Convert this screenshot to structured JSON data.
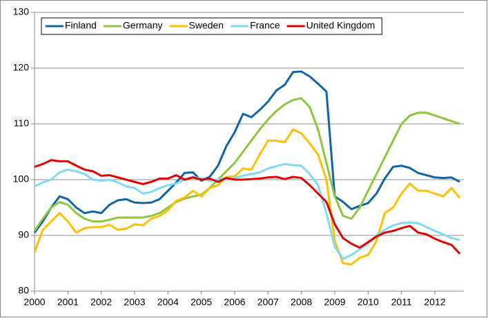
{
  "chart_data": {
    "type": "line",
    "x": [
      2000,
      2000.25,
      2000.5,
      2000.75,
      2001,
      2001.25,
      2001.5,
      2001.75,
      2002,
      2002.25,
      2002.5,
      2002.75,
      2003,
      2003.25,
      2003.5,
      2003.75,
      2004,
      2004.25,
      2004.5,
      2004.75,
      2005,
      2005.25,
      2005.5,
      2005.75,
      2006,
      2006.25,
      2006.5,
      2006.75,
      2007,
      2007.25,
      2007.5,
      2007.75,
      2008,
      2008.25,
      2008.5,
      2008.75,
      2009,
      2009.25,
      2009.5,
      2009.75,
      2010,
      2010.25,
      2010.5,
      2010.75,
      2011,
      2011.25,
      2011.5,
      2011.75,
      2012,
      2012.25,
      2012.5,
      2012.75
    ],
    "series": [
      {
        "name": "Finland",
        "color": "#0f64a8",
        "values": [
          90.5,
          92.5,
          95,
          97,
          96.5,
          95,
          94,
          94.3,
          94,
          95.5,
          96.3,
          96.5,
          95.9,
          95.8,
          95.9,
          96.5,
          98,
          99.5,
          101.2,
          101.3,
          99.8,
          100.5,
          102.5,
          106,
          108.5,
          111.8,
          111.2,
          112.5,
          114,
          116,
          117,
          119.3,
          119.4,
          118.5,
          117.2,
          115.8,
          97,
          96,
          94.7,
          95.3,
          95.8,
          97.5,
          100.2,
          102.3,
          102.5,
          102.1,
          101.2,
          100.8,
          100.4,
          100.3,
          100.4,
          99.6
        ]
      },
      {
        "name": "Germany",
        "color": "#8cc63f",
        "values": [
          90.8,
          93,
          95,
          96,
          95.5,
          94,
          93,
          92.5,
          92.5,
          92.8,
          93.2,
          93.2,
          93.2,
          93.2,
          93.5,
          94,
          95,
          96,
          96.6,
          97,
          97.3,
          98.5,
          100,
          101.5,
          103,
          105,
          107,
          109,
          110.8,
          112.3,
          113.5,
          114.3,
          114.6,
          113,
          109,
          103,
          97,
          93.5,
          93,
          95,
          98,
          101,
          104,
          107,
          110,
          111.5,
          112,
          112,
          111.5,
          111,
          110.5,
          110
        ]
      },
      {
        "name": "Sweden",
        "color": "#ffc000",
        "values": [
          87,
          91,
          92.5,
          94,
          92.5,
          90.5,
          91.3,
          91.5,
          91.5,
          91.9,
          91,
          91.2,
          92,
          91.8,
          93,
          93.5,
          94.5,
          96.2,
          96.8,
          98,
          97,
          98.5,
          99,
          100.5,
          100.6,
          102,
          101.8,
          104.5,
          107,
          107,
          106.7,
          109,
          108.3,
          106.5,
          104.5,
          100,
          89,
          85,
          84.8,
          86,
          86.5,
          89,
          94,
          95,
          97.5,
          99.3,
          98,
          98,
          97.5,
          97,
          98.5,
          96.7
        ]
      },
      {
        "name": "France",
        "color": "#7fd9f5",
        "values": [
          98.8,
          99.5,
          100,
          101.3,
          101.8,
          101.5,
          101,
          100,
          99.8,
          100,
          99.5,
          98.8,
          98.5,
          97.5,
          97.8,
          98.5,
          99,
          99.3,
          100,
          100.5,
          100.2,
          99.8,
          100,
          100.3,
          100.3,
          100.7,
          101,
          101.3,
          102,
          102.4,
          102.8,
          102.6,
          102.5,
          101,
          99,
          94,
          88,
          85.8,
          86.5,
          87.5,
          88.5,
          90,
          91,
          91.8,
          92.2,
          92.3,
          92.2,
          91.5,
          90.8,
          90.2,
          89.5,
          89.2
        ]
      },
      {
        "name": "United Kingdom",
        "color": "#e30000",
        "values": [
          102.3,
          102.8,
          103.5,
          103.3,
          103.3,
          102.5,
          101.8,
          101.5,
          100.7,
          100.8,
          100.4,
          100,
          99.6,
          99.2,
          99.6,
          100.2,
          100.2,
          100.8,
          100,
          100.4,
          100,
          100.2,
          99.6,
          100.3,
          100,
          100,
          100.1,
          100.2,
          100.4,
          100.5,
          100.1,
          100.5,
          100.3,
          99,
          97.5,
          96,
          92,
          89.5,
          88.5,
          87.8,
          88.8,
          89.8,
          90.5,
          90.8,
          91.3,
          91.7,
          90.5,
          90.2,
          89.4,
          88.8,
          88.3,
          86.7
        ]
      }
    ],
    "xlim": [
      2000,
      2012.87
    ],
    "xticks": [
      2000,
      2001,
      2002,
      2003,
      2004,
      2005,
      2006,
      2007,
      2008,
      2009,
      2010,
      2011,
      2012
    ],
    "ylim": [
      80,
      130
    ],
    "yticks": [
      80,
      90,
      100,
      110,
      120,
      130
    ],
    "grid": true,
    "legend": "top-left"
  }
}
